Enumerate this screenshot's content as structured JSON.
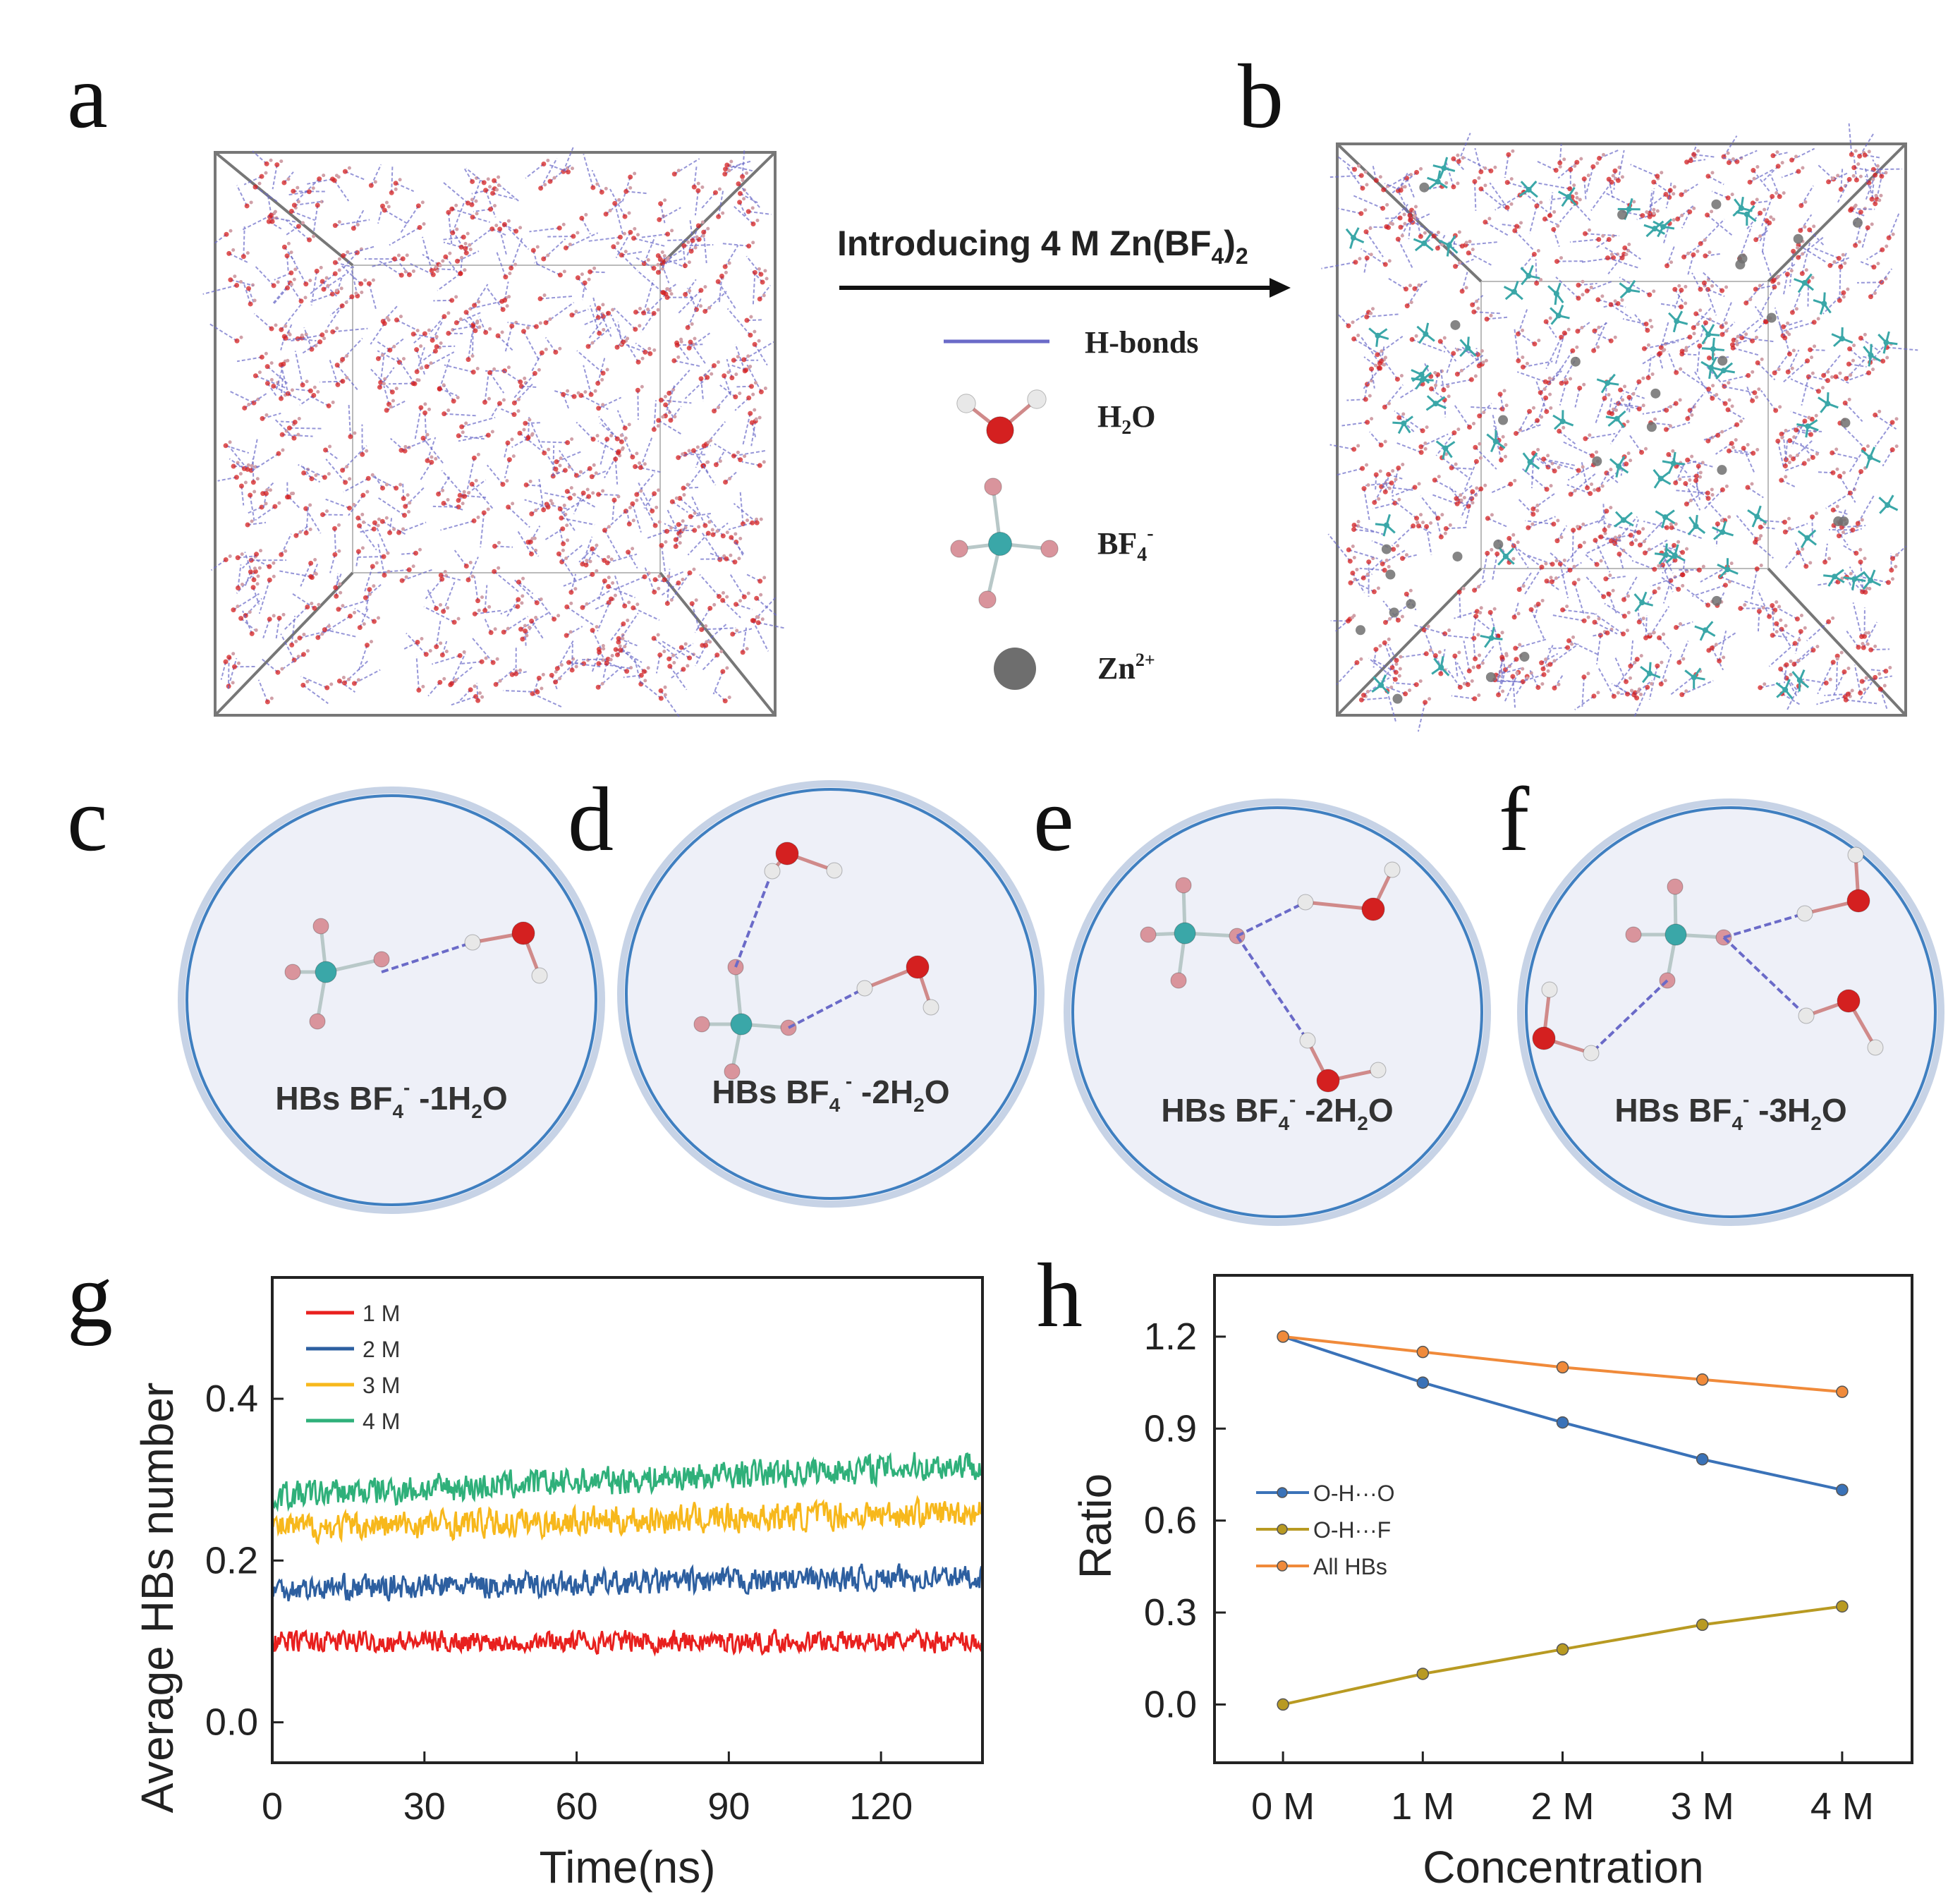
{
  "panel_labels": {
    "a": "a",
    "b": "b",
    "c": "c",
    "d": "d",
    "e": "e",
    "f": "f",
    "g": "g",
    "h": "h"
  },
  "arrow_label": {
    "main": "Introducing 4 M Zn(BF",
    "sub1": "4",
    "mid": ")",
    "sub2": "2"
  },
  "legend": {
    "hbonds": "H-bonds",
    "h2o": {
      "a": "H",
      "sub": "2",
      "b": "O"
    },
    "bf4": {
      "a": "BF",
      "sub": "4",
      "sup": "-"
    },
    "zn": {
      "a": "Zn",
      "sup": "2+"
    }
  },
  "circles": [
    {
      "pre": "HBs BF",
      "sub1": "4",
      "sup": "-",
      "mid": " -1H",
      "sub2": "2",
      "post": "O"
    },
    {
      "pre": "HBs BF",
      "sub1": "4",
      "sup": " -",
      "mid": " -2H",
      "sub2": "2",
      "post": "O"
    },
    {
      "pre": "HBs BF",
      "sub1": "4",
      "sup": "-",
      "mid": " -2H",
      "sub2": "2",
      "post": "O"
    },
    {
      "pre": "HBs BF",
      "sub1": "4",
      "sup": "-",
      "mid": " -3H",
      "sub2": "2",
      "post": "O"
    }
  ],
  "colors": {
    "h2o_o": "#d42020",
    "h_atom": "#e8e8e8",
    "b_atom": "#3aa7a8",
    "f_atom": "#d9949c",
    "zn": "#707070",
    "hbond": "#6a6ac8",
    "circle": "#3f7fc0"
  },
  "chart_data": [
    {
      "type": "line",
      "title": "",
      "xlabel": "Time(ns)",
      "ylabel": "Average HBs number",
      "xlim": [
        0,
        140
      ],
      "ylim": [
        -0.05,
        0.55
      ],
      "xticks": [
        0,
        30,
        60,
        90,
        120
      ],
      "xtick_labels": [
        "0",
        "30",
        "60",
        "90",
        "120"
      ],
      "yticks": [
        0.0,
        0.2,
        0.4
      ],
      "ytick_labels": [
        "0.0",
        "0.2",
        "0.4"
      ],
      "legend_position": "top-left",
      "series": [
        {
          "name": "1 M",
          "color": "#e8201e",
          "start": 0.1,
          "end": 0.1,
          "noise": 0.012
        },
        {
          "name": "2 M",
          "color": "#2d5fa0",
          "start": 0.165,
          "end": 0.18,
          "noise": 0.014
        },
        {
          "name": "3 M",
          "color": "#f7b81c",
          "start": 0.24,
          "end": 0.26,
          "noise": 0.016
        },
        {
          "name": "4 M",
          "color": "#2fb07a",
          "start": 0.28,
          "end": 0.32,
          "noise": 0.016
        }
      ]
    },
    {
      "type": "line",
      "title": "",
      "xlabel": "Concentration",
      "ylabel": "Ratio",
      "categories": [
        "0 M",
        "1 M",
        "2 M",
        "3 M",
        "4 M"
      ],
      "xlim": [
        -0.49,
        4.5
      ],
      "ylim": [
        -0.19,
        1.4
      ],
      "yticks": [
        0.0,
        0.3,
        0.6,
        0.9,
        1.2
      ],
      "ytick_labels": [
        "0.0",
        "0.3",
        "0.6",
        "0.9",
        "1.2"
      ],
      "legend_position": "center-left",
      "series": [
        {
          "name": "O-H···O",
          "color": "#3a72b8",
          "values": [
            1.2,
            1.05,
            0.92,
            0.8,
            0.7
          ]
        },
        {
          "name": "O-H···F",
          "color": "#b89a22",
          "values": [
            0.0,
            0.1,
            0.18,
            0.26,
            0.32
          ]
        },
        {
          "name": "All HBs",
          "color": "#f08a3a",
          "values": [
            1.2,
            1.15,
            1.1,
            1.06,
            1.02
          ]
        }
      ]
    }
  ]
}
